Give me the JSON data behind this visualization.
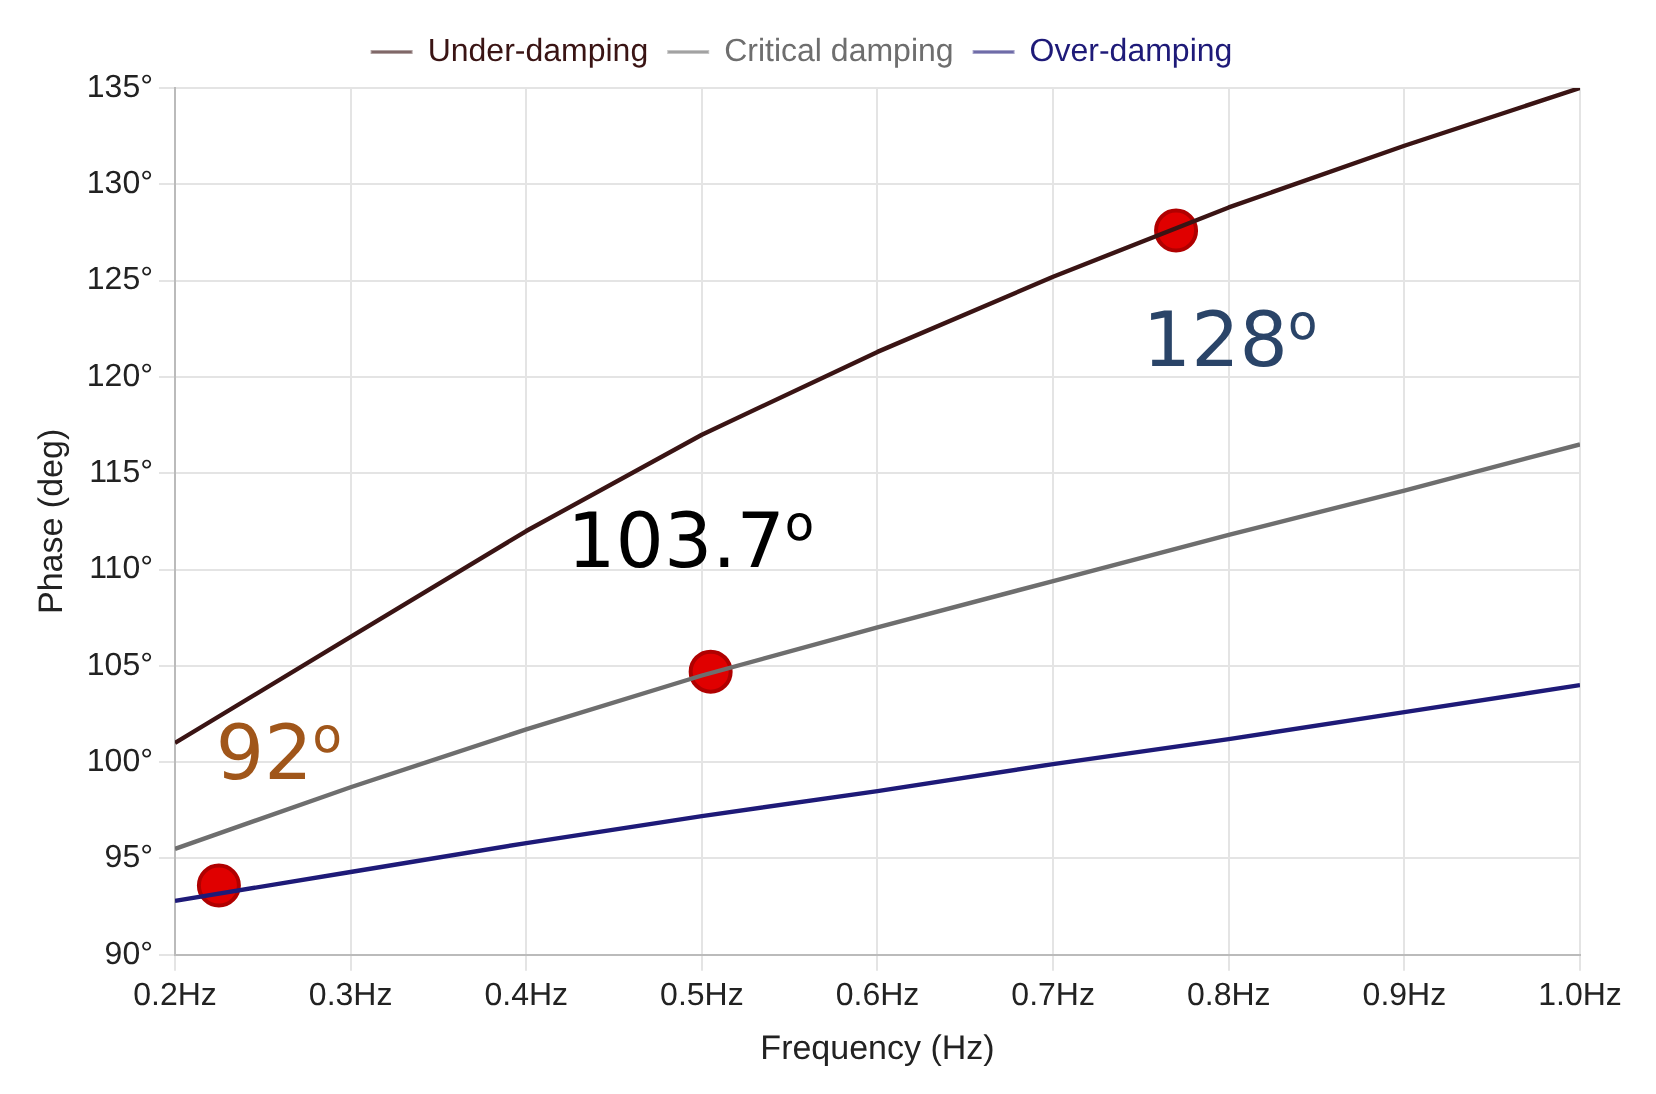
{
  "chart_data": {
    "type": "line",
    "xlabel": "Frequency (Hz)",
    "ylabel": "Phase (deg)",
    "x": [
      0.2,
      0.3,
      0.4,
      0.5,
      0.6,
      0.7,
      0.8,
      0.9,
      1.0
    ],
    "series": [
      {
        "name": "Under-damping",
        "color": "#3a1414",
        "values": [
          101,
          106.5,
          112,
          117,
          121.3,
          125.2,
          128.8,
          132,
          135
        ]
      },
      {
        "name": "Critical damping",
        "color": "#6e6e6e",
        "values": [
          95.5,
          98.7,
          101.7,
          104.5,
          107,
          109.4,
          111.8,
          114.1,
          116.5
        ]
      },
      {
        "name": "Over-damping",
        "color": "#1e1a78",
        "values": [
          92.8,
          94.3,
          95.8,
          97.2,
          98.5,
          99.9,
          101.2,
          102.6,
          104
        ]
      },
      {
        "type": "scatter",
        "color": "#e00000",
        "x": [
          0.225,
          0.505,
          0.77
        ],
        "values": [
          93.6,
          104.7,
          127.6
        ]
      }
    ],
    "xlim": [
      0.2,
      1.0
    ],
    "xticks": [
      {
        "value": 0.2,
        "label": "0.2Hz"
      },
      {
        "value": 0.3,
        "label": "0.3Hz"
      },
      {
        "value": 0.4,
        "label": "0.4Hz"
      },
      {
        "value": 0.5,
        "label": "0.5Hz"
      },
      {
        "value": 0.6,
        "label": "0.6Hz"
      },
      {
        "value": 0.7,
        "label": "0.7Hz"
      },
      {
        "value": 0.8,
        "label": "0.8Hz"
      },
      {
        "value": 0.9,
        "label": "0.9Hz"
      },
      {
        "value": 1.0,
        "label": "1.0Hz"
      }
    ],
    "ylim": [
      90,
      135
    ],
    "yticks": [
      {
        "value": 90,
        "label": "90°"
      },
      {
        "value": 95,
        "label": "95°"
      },
      {
        "value": 100,
        "label": "100°"
      },
      {
        "value": 105,
        "label": "105°"
      },
      {
        "value": 110,
        "label": "110°"
      },
      {
        "value": 115,
        "label": "115°"
      },
      {
        "value": 120,
        "label": "120°"
      },
      {
        "value": 125,
        "label": "125°"
      },
      {
        "value": 130,
        "label": "130°"
      },
      {
        "value": 135,
        "label": "135°"
      }
    ],
    "annotations": [
      {
        "text": "92$^{o}$",
        "x": 0.225,
        "y": 93.6
      },
      {
        "text": "103.7$^{o}$",
        "x": 0.505,
        "y": 104.7
      },
      {
        "text": "128$^{o}$",
        "x": 0.77,
        "y": 127.6
      }
    ],
    "grid": true,
    "legend": "top",
    "line_style": "solid"
  }
}
